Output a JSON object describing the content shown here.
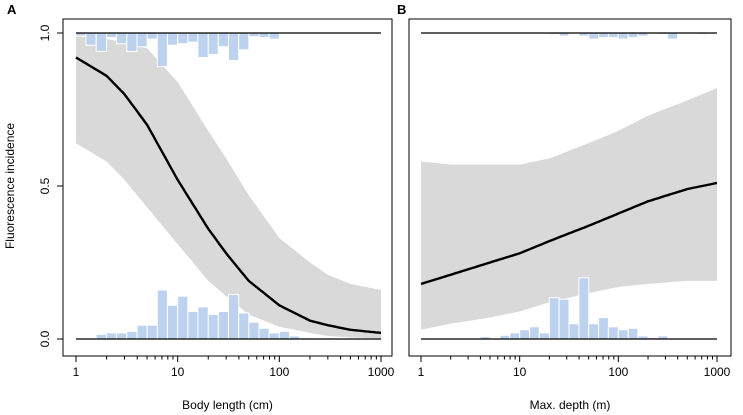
{
  "ylabel": "Fluorescence incidence",
  "colors": {
    "band": "#d9d9d9",
    "hist_fill": "#bcd2ee",
    "hist_stroke": "#ffffff",
    "curve": "#000000",
    "frame": "#000000"
  },
  "chart_data": [
    {
      "panel": "A",
      "type": "line",
      "xlabel": "Body length (cm)",
      "x_scale": "log10",
      "xlim": [
        1,
        1000
      ],
      "ylim": [
        0,
        1
      ],
      "x_ticks": [
        1,
        10,
        100,
        1000
      ],
      "x_tick_labels": [
        "1",
        "10",
        "100",
        "1000"
      ],
      "y_ticks": [
        0,
        0.5,
        1
      ],
      "y_tick_labels": [
        "0.0",
        "0.5",
        "1.0"
      ],
      "series": [
        {
          "name": "fitted probability",
          "x": [
            1,
            2,
            3,
            5,
            10,
            20,
            30,
            50,
            100,
            200,
            300,
            500,
            1000
          ],
          "y": [
            0.92,
            0.86,
            0.8,
            0.7,
            0.52,
            0.36,
            0.28,
            0.19,
            0.11,
            0.06,
            0.045,
            0.03,
            0.02
          ],
          "lower": [
            0.64,
            0.58,
            0.52,
            0.43,
            0.31,
            0.19,
            0.14,
            0.08,
            0.04,
            0.02,
            0.01,
            0.005,
            0.002
          ],
          "upper": [
            0.99,
            0.98,
            0.97,
            0.95,
            0.84,
            0.68,
            0.59,
            0.47,
            0.33,
            0.25,
            0.21,
            0.18,
            0.16
          ]
        }
      ],
      "hist_present": {
        "bin_edges": [
          1,
          1.25,
          1.58,
          2,
          2.51,
          3.16,
          3.98,
          5.01,
          6.31,
          7.94,
          10,
          12.6,
          15.8,
          20,
          25.1,
          31.6,
          39.8,
          50.1,
          63.1,
          79.4,
          100,
          126,
          158,
          200,
          251,
          316,
          398,
          501,
          631,
          794,
          1000
        ],
        "heights": [
          0.01,
          0.04,
          0.06,
          0.015,
          0.035,
          0.06,
          0.045,
          0.02,
          0.11,
          0.04,
          0.035,
          0.03,
          0.08,
          0.07,
          0.045,
          0.09,
          0.055,
          0.012,
          0.015,
          0.02,
          0,
          0,
          0,
          0,
          0,
          0,
          0,
          0,
          0,
          0
        ]
      },
      "hist_absent": {
        "bin_edges": [
          1,
          1.25,
          1.58,
          2,
          2.51,
          3.16,
          3.98,
          5.01,
          6.31,
          7.94,
          10,
          12.6,
          15.8,
          20,
          25.1,
          31.6,
          39.8,
          50.1,
          63.1,
          79.4,
          100,
          126,
          158,
          200,
          251,
          316,
          398,
          501,
          631,
          794,
          1000
        ],
        "heights": [
          0,
          0,
          0.015,
          0.02,
          0.02,
          0.025,
          0.045,
          0.045,
          0.16,
          0.11,
          0.14,
          0.09,
          0.105,
          0.08,
          0.09,
          0.145,
          0.085,
          0.055,
          0.035,
          0.02,
          0.025,
          0.01,
          0.004,
          0,
          0,
          0,
          0,
          0,
          0,
          0
        ]
      }
    },
    {
      "panel": "B",
      "type": "line",
      "xlabel": "Max. depth (m)",
      "x_scale": "log10",
      "xlim": [
        1,
        1000
      ],
      "ylim": [
        0,
        1
      ],
      "x_ticks": [
        1,
        10,
        100,
        1000
      ],
      "x_tick_labels": [
        "1",
        "10",
        "100",
        "1000"
      ],
      "series": [
        {
          "name": "fitted probability",
          "x": [
            1,
            2,
            5,
            10,
            20,
            50,
            100,
            200,
            500,
            1000
          ],
          "y": [
            0.18,
            0.21,
            0.25,
            0.28,
            0.32,
            0.37,
            0.41,
            0.45,
            0.49,
            0.51
          ],
          "lower": [
            0.03,
            0.05,
            0.07,
            0.09,
            0.12,
            0.15,
            0.17,
            0.18,
            0.19,
            0.19
          ],
          "upper": [
            0.58,
            0.57,
            0.57,
            0.57,
            0.59,
            0.64,
            0.68,
            0.73,
            0.78,
            0.82
          ]
        }
      ],
      "hist_present": {
        "bin_edges": [
          1,
          1.25,
          1.58,
          2,
          2.51,
          3.16,
          3.98,
          5.01,
          6.31,
          7.94,
          10,
          12.6,
          15.8,
          20,
          25.1,
          31.6,
          39.8,
          50.1,
          63.1,
          79.4,
          100,
          126,
          158,
          200,
          251,
          316,
          398,
          501,
          631,
          794,
          1000
        ],
        "heights": [
          0,
          0,
          0,
          0,
          0,
          0,
          0,
          0,
          0,
          0,
          0,
          0,
          0,
          0.005,
          0.01,
          0,
          0.01,
          0.02,
          0.015,
          0.015,
          0.02,
          0.015,
          0.01,
          0,
          0.005,
          0.02,
          0,
          0,
          0.005,
          0.002
        ]
      },
      "hist_absent": {
        "bin_edges": [
          1,
          1.25,
          1.58,
          2,
          2.51,
          3.16,
          3.98,
          5.01,
          6.31,
          7.94,
          10,
          12.6,
          15.8,
          20,
          25.1,
          31.6,
          39.8,
          50.1,
          63.1,
          79.4,
          100,
          126,
          158,
          200,
          251,
          316,
          398,
          501,
          631,
          794,
          1000
        ],
        "heights": [
          0,
          0,
          0,
          0,
          0,
          0,
          0.008,
          0,
          0.012,
          0.02,
          0.03,
          0.04,
          0.02,
          0.135,
          0.13,
          0.05,
          0.2,
          0.05,
          0.07,
          0.04,
          0.03,
          0.035,
          0.01,
          0.005,
          0.01,
          0,
          0,
          0,
          0,
          0
        ]
      }
    }
  ]
}
